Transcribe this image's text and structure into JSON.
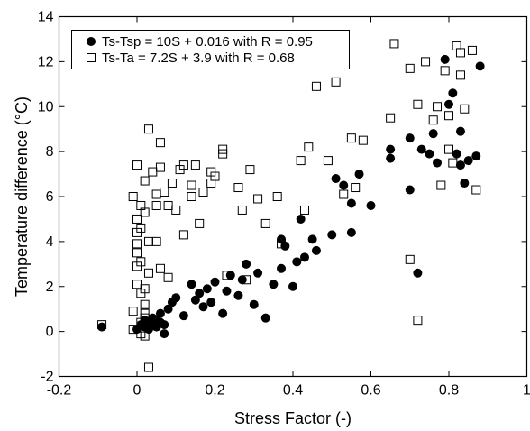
{
  "chart_data": {
    "type": "scatter",
    "title": "",
    "xlabel": "Stress Factor (-)",
    "ylabel": "Temperature difference (°C)",
    "xlim": [
      -0.2,
      1.0
    ],
    "ylim": [
      -2,
      14
    ],
    "xticks": [
      "-0.2",
      "0",
      "0.2",
      "0.4",
      "0.6",
      "0.8",
      "1"
    ],
    "yticks": [
      "-2",
      "0",
      "2",
      "4",
      "6",
      "8",
      "10",
      "12",
      "14"
    ],
    "grid": false,
    "legend_position": "top-left",
    "series": [
      {
        "name": "Ts-Tsp = 10S + 0.016 with  R = 0.95",
        "marker": "filled-circle",
        "color": "#000000",
        "points": [
          [
            -0.09,
            0.2
          ],
          [
            0.0,
            0.1
          ],
          [
            0.01,
            0.3
          ],
          [
            0.02,
            0.5
          ],
          [
            0.02,
            0.2
          ],
          [
            0.03,
            0.4
          ],
          [
            0.03,
            0.1
          ],
          [
            0.04,
            0.6
          ],
          [
            0.04,
            0.3
          ],
          [
            0.05,
            0.2
          ],
          [
            0.05,
            0.5
          ],
          [
            0.06,
            0.8
          ],
          [
            0.06,
            0.4
          ],
          [
            0.07,
            0.3
          ],
          [
            0.07,
            -0.1
          ],
          [
            0.08,
            1.0
          ],
          [
            0.09,
            1.3
          ],
          [
            0.1,
            1.5
          ],
          [
            0.12,
            0.7
          ],
          [
            0.14,
            2.1
          ],
          [
            0.15,
            1.4
          ],
          [
            0.16,
            1.7
          ],
          [
            0.17,
            1.1
          ],
          [
            0.18,
            1.9
          ],
          [
            0.19,
            1.3
          ],
          [
            0.2,
            2.2
          ],
          [
            0.22,
            0.8
          ],
          [
            0.23,
            1.8
          ],
          [
            0.24,
            2.5
          ],
          [
            0.26,
            1.6
          ],
          [
            0.27,
            2.3
          ],
          [
            0.28,
            3.0
          ],
          [
            0.3,
            1.2
          ],
          [
            0.31,
            2.6
          ],
          [
            0.33,
            0.6
          ],
          [
            0.35,
            2.1
          ],
          [
            0.37,
            4.1
          ],
          [
            0.37,
            2.8
          ],
          [
            0.38,
            3.8
          ],
          [
            0.4,
            2.0
          ],
          [
            0.41,
            3.1
          ],
          [
            0.42,
            5.0
          ],
          [
            0.43,
            3.3
          ],
          [
            0.45,
            4.1
          ],
          [
            0.46,
            3.6
          ],
          [
            0.5,
            4.3
          ],
          [
            0.51,
            6.8
          ],
          [
            0.53,
            6.5
          ],
          [
            0.55,
            4.4
          ],
          [
            0.55,
            5.7
          ],
          [
            0.57,
            7.0
          ],
          [
            0.6,
            5.6
          ],
          [
            0.65,
            7.7
          ],
          [
            0.65,
            8.1
          ],
          [
            0.7,
            6.3
          ],
          [
            0.7,
            8.6
          ],
          [
            0.72,
            2.6
          ],
          [
            0.73,
            8.1
          ],
          [
            0.75,
            7.9
          ],
          [
            0.76,
            8.8
          ],
          [
            0.77,
            7.5
          ],
          [
            0.79,
            12.1
          ],
          [
            0.8,
            10.1
          ],
          [
            0.81,
            10.6
          ],
          [
            0.82,
            7.9
          ],
          [
            0.83,
            8.9
          ],
          [
            0.83,
            7.4
          ],
          [
            0.84,
            6.6
          ],
          [
            0.85,
            7.6
          ],
          [
            0.87,
            7.8
          ],
          [
            0.88,
            11.8
          ]
        ]
      },
      {
        "name": "Ts-Ta = 7.2S + 3.9 with R = 0.68",
        "marker": "open-square",
        "color": "#000000",
        "points": [
          [
            -0.09,
            0.3
          ],
          [
            -0.01,
            0.9
          ],
          [
            -0.01,
            0.1
          ],
          [
            -0.01,
            6.0
          ],
          [
            0.0,
            7.4
          ],
          [
            0.0,
            5.0
          ],
          [
            0.0,
            4.4
          ],
          [
            0.0,
            3.9
          ],
          [
            0.0,
            3.5
          ],
          [
            0.0,
            2.9
          ],
          [
            0.0,
            2.1
          ],
          [
            0.01,
            5.6
          ],
          [
            0.01,
            4.6
          ],
          [
            0.01,
            3.1
          ],
          [
            0.01,
            1.7
          ],
          [
            0.01,
            0.4
          ],
          [
            0.01,
            -0.1
          ],
          [
            0.02,
            1.2
          ],
          [
            0.02,
            0.6
          ],
          [
            0.02,
            -0.2
          ],
          [
            0.02,
            6.7
          ],
          [
            0.02,
            5.3
          ],
          [
            0.02,
            1.9
          ],
          [
            0.02,
            0.8
          ],
          [
            0.03,
            9.0
          ],
          [
            0.03,
            4.0
          ],
          [
            0.03,
            2.6
          ],
          [
            0.03,
            -1.6
          ],
          [
            0.04,
            7.1
          ],
          [
            0.05,
            6.1
          ],
          [
            0.05,
            5.6
          ],
          [
            0.05,
            4.0
          ],
          [
            0.06,
            8.4
          ],
          [
            0.06,
            7.3
          ],
          [
            0.06,
            2.8
          ],
          [
            0.07,
            6.2
          ],
          [
            0.08,
            5.6
          ],
          [
            0.08,
            2.4
          ],
          [
            0.09,
            6.6
          ],
          [
            0.1,
            5.4
          ],
          [
            0.11,
            7.2
          ],
          [
            0.12,
            7.4
          ],
          [
            0.12,
            4.3
          ],
          [
            0.14,
            6.5
          ],
          [
            0.14,
            6.0
          ],
          [
            0.15,
            7.4
          ],
          [
            0.16,
            4.8
          ],
          [
            0.17,
            6.2
          ],
          [
            0.19,
            7.1
          ],
          [
            0.19,
            6.6
          ],
          [
            0.2,
            6.9
          ],
          [
            0.22,
            7.9
          ],
          [
            0.22,
            8.1
          ],
          [
            0.23,
            2.5
          ],
          [
            0.26,
            6.4
          ],
          [
            0.27,
            5.4
          ],
          [
            0.28,
            2.3
          ],
          [
            0.29,
            7.2
          ],
          [
            0.31,
            5.9
          ],
          [
            0.33,
            4.8
          ],
          [
            0.36,
            6.0
          ],
          [
            0.37,
            3.9
          ],
          [
            0.42,
            7.6
          ],
          [
            0.43,
            5.4
          ],
          [
            0.44,
            8.2
          ],
          [
            0.46,
            10.9
          ],
          [
            0.49,
            7.6
          ],
          [
            0.51,
            11.1
          ],
          [
            0.53,
            6.1
          ],
          [
            0.55,
            8.6
          ],
          [
            0.56,
            6.4
          ],
          [
            0.58,
            8.5
          ],
          [
            0.65,
            9.5
          ],
          [
            0.66,
            12.8
          ],
          [
            0.7,
            11.7
          ],
          [
            0.7,
            3.2
          ],
          [
            0.72,
            0.5
          ],
          [
            0.72,
            10.1
          ],
          [
            0.74,
            12.0
          ],
          [
            0.76,
            9.4
          ],
          [
            0.77,
            10.0
          ],
          [
            0.78,
            6.5
          ],
          [
            0.79,
            11.6
          ],
          [
            0.8,
            8.1
          ],
          [
            0.8,
            9.6
          ],
          [
            0.81,
            7.5
          ],
          [
            0.82,
            12.7
          ],
          [
            0.83,
            12.4
          ],
          [
            0.83,
            11.4
          ],
          [
            0.84,
            9.9
          ],
          [
            0.86,
            12.5
          ],
          [
            0.87,
            6.3
          ]
        ]
      }
    ]
  }
}
